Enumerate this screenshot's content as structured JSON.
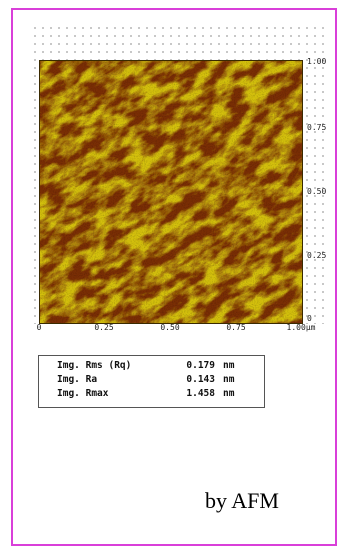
{
  "colors": {
    "frame_border": "#d93fd9",
    "afm_dark": "#7a2e05",
    "afm_mid": "#a85a0a",
    "afm_bright": "#d4c010"
  },
  "afm_image": {
    "y_ticks": [
      "1.00",
      "0.75",
      "0.50",
      "0.25",
      "0"
    ],
    "x_ticks": [
      "0",
      "0.25",
      "0.50",
      "0.75",
      "1.00µm"
    ]
  },
  "stats": [
    {
      "name": "Img. Rms (Rq)",
      "value": "0.179",
      "unit": "nm"
    },
    {
      "name": "Img. Ra",
      "value": "0.143",
      "unit": "nm"
    },
    {
      "name": "Img. Rmax",
      "value": "1.458",
      "unit": "nm"
    }
  ],
  "caption": "by AFM"
}
